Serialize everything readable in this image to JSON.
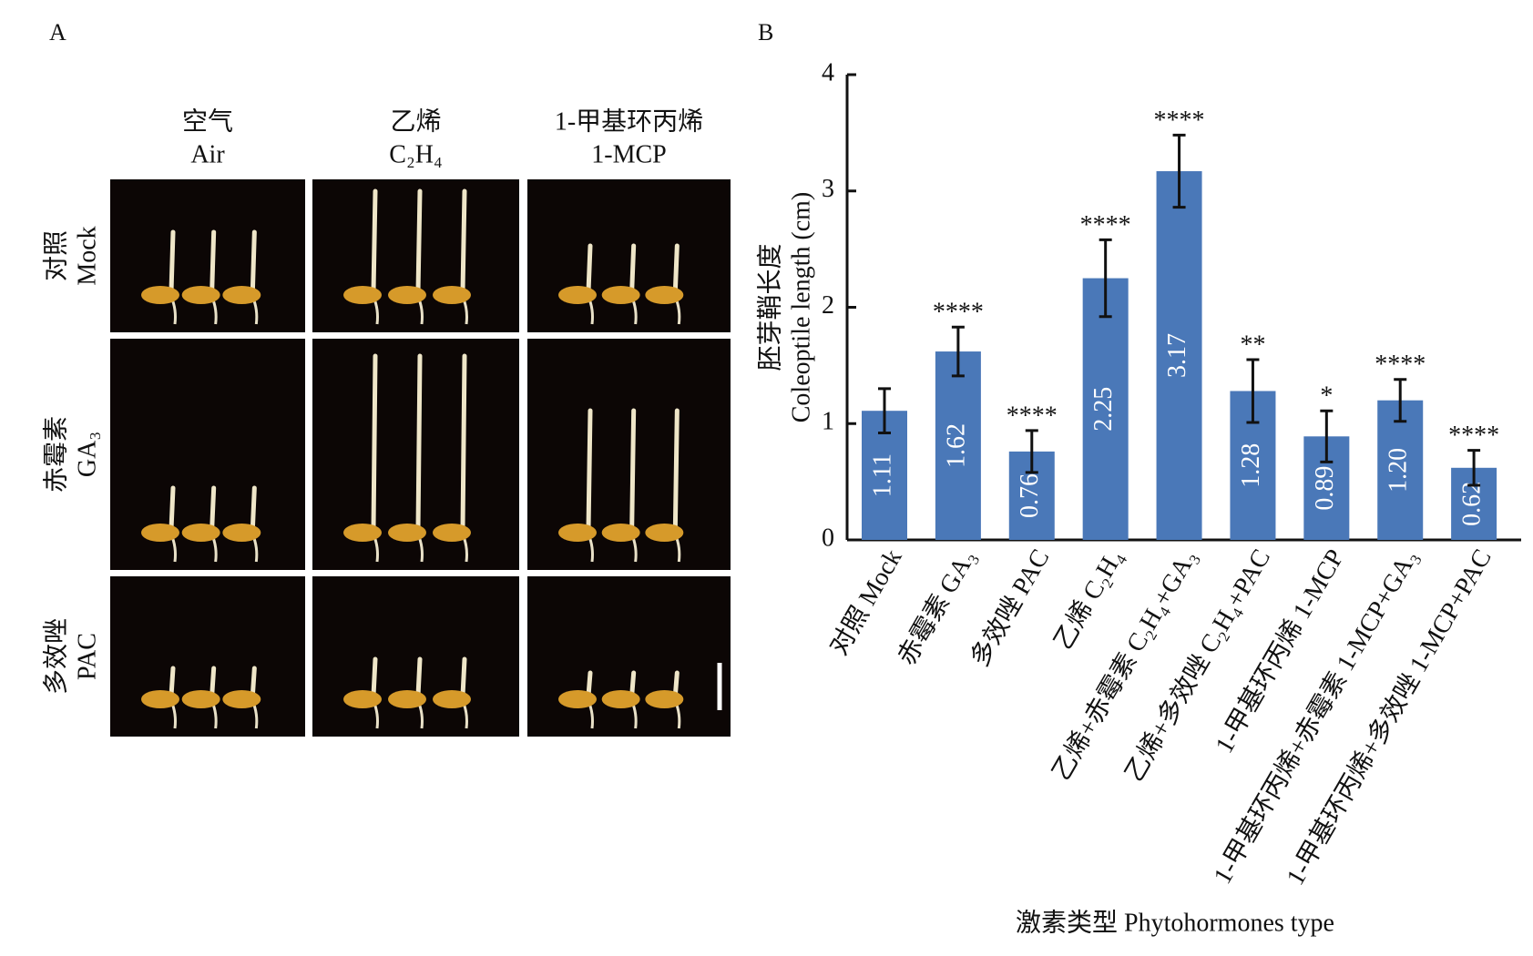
{
  "panel_a": {
    "label": "A",
    "columns": [
      {
        "zh": "空气",
        "en": "Air"
      },
      {
        "zh": "乙烯",
        "en": "C₂H₄"
      },
      {
        "zh": "1-甲基环丙烯",
        "en": "1-MCP"
      }
    ],
    "rows": [
      {
        "zh": "对照",
        "en": "Mock"
      },
      {
        "zh": "赤霉素",
        "en": "GA₃"
      },
      {
        "zh": "多效唑",
        "en": "PAC"
      }
    ]
  },
  "chart_data": {
    "type": "bar",
    "panel_label": "B",
    "y_title": [
      "胚芽鞘长度",
      "Coleoptile length (cm)"
    ],
    "x_title": "激素类型 Phytohormones type",
    "categories": [
      "对照  Mock",
      "赤霉素  GA₃",
      "多效唑  PAC",
      "乙烯  C₂H₄",
      "乙烯+赤霉素  C₂H₄+GA₃",
      "乙烯+多效唑  C₂H₄+PAC",
      "1-甲基环丙烯  1-MCP",
      "1-甲基环丙烯+赤霉素  1-MCP+GA₃",
      "1-甲基环丙烯+多效唑  1-MCP+PAC"
    ],
    "values": [
      1.11,
      1.62,
      0.76,
      2.25,
      3.17,
      1.28,
      0.89,
      1.2,
      0.62
    ],
    "value_labels": [
      "1.11",
      "1.62",
      "0.76",
      "2.25",
      "3.17",
      "1.28",
      "0.89",
      "1.20",
      "0.62"
    ],
    "errors": [
      0.19,
      0.21,
      0.18,
      0.33,
      0.31,
      0.27,
      0.22,
      0.18,
      0.15
    ],
    "annotations": [
      null,
      "****",
      "****",
      "****",
      "****",
      "**",
      "*",
      "****",
      "****"
    ],
    "color": "#4a78b8",
    "ylim": [
      0,
      4
    ],
    "yticks": [
      0,
      1,
      2,
      3,
      4
    ]
  }
}
